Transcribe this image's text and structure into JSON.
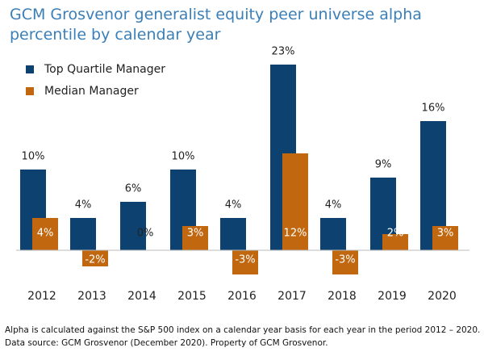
{
  "chart_data": {
    "type": "bar",
    "title": "GCM Grosvenor generalist equity peer universe alpha percentile by calendar year",
    "categories": [
      "2012",
      "2013",
      "2014",
      "2015",
      "2016",
      "2017",
      "2018",
      "2019",
      "2020"
    ],
    "series": [
      {
        "name": "Top Quartile Manager",
        "color": "#0d416f",
        "values": [
          10,
          4,
          6,
          10,
          4,
          23,
          4,
          9,
          16
        ],
        "value_labels": [
          "10%",
          "4%",
          "6%",
          "10%",
          "4%",
          "23%",
          "4%",
          "9%",
          "16%"
        ]
      },
      {
        "name": "Median Manager",
        "color": "#c1670f",
        "values": [
          4,
          -2,
          0,
          3,
          -3,
          12,
          -3,
          2,
          3
        ],
        "value_labels": [
          "4%",
          "-2%",
          "0%",
          "3%",
          "-3%",
          "12%",
          "-3%",
          "2%",
          "3%"
        ]
      }
    ],
    "notes": [
      "Alpha is calculated against the S&P 500 index on a calendar year basis for each year in the period 2012 – 2020.",
      "Data source: GCM Grosvenor (December 2020). Property of GCM Grosvenor."
    ]
  }
}
